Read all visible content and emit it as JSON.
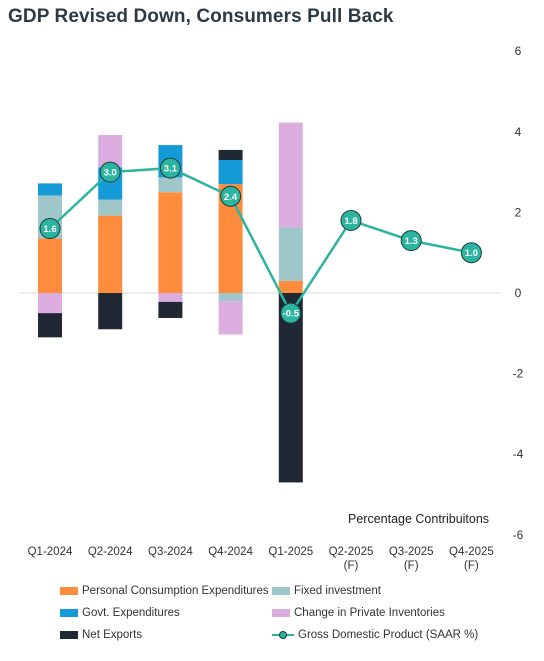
{
  "chart_data": {
    "type": "bar",
    "stacked": true,
    "title": "GDP Revised Down, Consumers Pull Back",
    "subtitle": "Percentage Contribuitons",
    "categories": [
      [
        "Q1-2024"
      ],
      [
        "Q2-2024"
      ],
      [
        "Q3-2024"
      ],
      [
        "Q4-2024"
      ],
      [
        "Q1-2025"
      ],
      [
        "Q2-2025",
        "(F)"
      ],
      [
        "Q3-2025",
        "(F)"
      ],
      [
        "Q4-2025",
        "(F)"
      ]
    ],
    "ylim": [
      -6,
      6
    ],
    "yticks": [
      -6,
      -4,
      -2,
      0,
      2,
      4,
      6
    ],
    "y_axis_side": "right",
    "grid": false,
    "legend_position": "bottom",
    "series": [
      {
        "name": "Personal Consumption Expenditures",
        "color": "#ff8c3d",
        "values": [
          1.35,
          1.92,
          2.5,
          2.7,
          0.3,
          null,
          null,
          null
        ]
      },
      {
        "name": "Fixed investment",
        "color": "#9fc7c9",
        "values": [
          1.07,
          0.4,
          0.37,
          -0.2,
          1.33,
          null,
          null,
          null
        ]
      },
      {
        "name": "Govt. Expenditures",
        "color": "#149bd7",
        "values": [
          0.3,
          0.8,
          0.8,
          0.6,
          0.0,
          null,
          null,
          null
        ]
      },
      {
        "name": "Change in Private Inventories",
        "color": "#dcaee0",
        "values": [
          -0.5,
          0.8,
          -0.22,
          -0.83,
          2.6,
          null,
          null,
          null
        ]
      },
      {
        "name": "Net Exports",
        "color": "#1f2833",
        "values": [
          -0.6,
          -0.9,
          -0.4,
          0.25,
          -4.7,
          null,
          null,
          null
        ]
      }
    ],
    "line": {
      "name": "Gross Domestic Product (SAAR %)",
      "color": "#2bb5a0",
      "values": [
        1.6,
        3.0,
        3.1,
        2.4,
        -0.5,
        1.8,
        1.3,
        1.0
      ],
      "labels": [
        "1.6",
        "3.0",
        "3.1",
        "2.4",
        "-0.5",
        "1.8",
        "1.3",
        "1.0"
      ]
    }
  }
}
